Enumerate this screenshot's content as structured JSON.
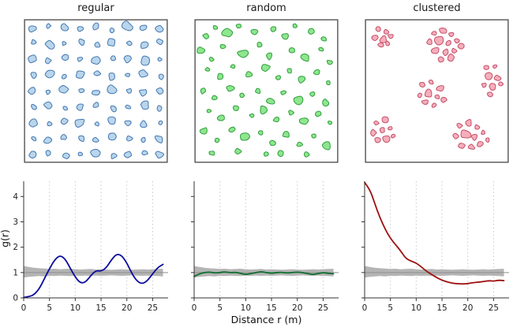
{
  "chart_data": {
    "type": "line",
    "layout": "2 rows x 3 columns; top row: point-pattern maps; bottom row: pair-correlation functions g(r) with grey simulation envelope; dotted vertical gridlines at x=5..25; legend: none",
    "xlabel": "Distance r (m)",
    "ylabel": "g(r)",
    "xlim": [
      0,
      28
    ],
    "ylim": [
      0,
      4.6
    ],
    "xticks": [
      0,
      5,
      10,
      15,
      20,
      25
    ],
    "yticks": [
      0,
      1,
      2,
      3,
      4
    ],
    "grid_x": [
      5,
      10,
      15,
      20,
      25
    ],
    "x": [
      0,
      1,
      2,
      3,
      4,
      5,
      6,
      7,
      8,
      9,
      10,
      11,
      12,
      13,
      14,
      15,
      16,
      17,
      18,
      19,
      20,
      21,
      22,
      23,
      24,
      25,
      26,
      27
    ],
    "envelope": {
      "color": "#b4b4b4",
      "center_line_y": 1,
      "center_line_color": "#8f8f8f",
      "lo": [
        0.8,
        0.83,
        0.85,
        0.86,
        0.85,
        0.87,
        0.86,
        0.88,
        0.87,
        0.86,
        0.88,
        0.87,
        0.88,
        0.87,
        0.88,
        0.87,
        0.88,
        0.89,
        0.88,
        0.87,
        0.88,
        0.89,
        0.88,
        0.87,
        0.88,
        0.87,
        0.86,
        0.85
      ],
      "hi": [
        1.26,
        1.22,
        1.19,
        1.17,
        1.16,
        1.14,
        1.15,
        1.13,
        1.14,
        1.15,
        1.13,
        1.12,
        1.13,
        1.14,
        1.12,
        1.13,
        1.12,
        1.11,
        1.12,
        1.13,
        1.12,
        1.11,
        1.12,
        1.13,
        1.12,
        1.13,
        1.14,
        1.15
      ]
    },
    "panels": [
      {
        "title": "regular",
        "map_fill": "#b9d5ec",
        "map_stroke": "#4478b0",
        "line_color": "#0b0b9e",
        "g": [
          0.02,
          0.05,
          0.12,
          0.35,
          0.75,
          1.15,
          1.5,
          1.68,
          1.55,
          1.18,
          0.82,
          0.58,
          0.62,
          0.88,
          1.08,
          1.05,
          1.18,
          1.5,
          1.73,
          1.68,
          1.38,
          0.95,
          0.65,
          0.55,
          0.68,
          0.95,
          1.2,
          1.32
        ],
        "map_points": [
          [
            6,
            7,
            3
          ],
          [
            17,
            5,
            2.2
          ],
          [
            28,
            6,
            4
          ],
          [
            39,
            7,
            2.6
          ],
          [
            50,
            5,
            3.4
          ],
          [
            61,
            8,
            2
          ],
          [
            72,
            5,
            4.2
          ],
          [
            83,
            6,
            2.8
          ],
          [
            94,
            7,
            3.6
          ],
          [
            7,
            16,
            2.4
          ],
          [
            18,
            18,
            3.8
          ],
          [
            28,
            17,
            2
          ],
          [
            40,
            16,
            3.2
          ],
          [
            51,
            18,
            2.6
          ],
          [
            61,
            16,
            4
          ],
          [
            73,
            17,
            2.2
          ],
          [
            83,
            18,
            3.4
          ],
          [
            94,
            16,
            2.8
          ],
          [
            6,
            28,
            4
          ],
          [
            17,
            29,
            2.6
          ],
          [
            29,
            27,
            3.2
          ],
          [
            39,
            28,
            2
          ],
          [
            50,
            29,
            3.8
          ],
          [
            62,
            27,
            2.4
          ],
          [
            72,
            28,
            3
          ],
          [
            84,
            29,
            4.2
          ],
          [
            94,
            28,
            2.2
          ],
          [
            7,
            39,
            2.8
          ],
          [
            18,
            38,
            3.4
          ],
          [
            28,
            40,
            2.2
          ],
          [
            39,
            39,
            4
          ],
          [
            51,
            38,
            2.6
          ],
          [
            61,
            40,
            3.2
          ],
          [
            72,
            39,
            2
          ],
          [
            83,
            38,
            3.8
          ],
          [
            95,
            40,
            2.4
          ],
          [
            6,
            50,
            3.2
          ],
          [
            17,
            51,
            2
          ],
          [
            28,
            49,
            3.8
          ],
          [
            40,
            50,
            2.4
          ],
          [
            50,
            51,
            3
          ],
          [
            61,
            49,
            4.2
          ],
          [
            73,
            50,
            2.2
          ],
          [
            83,
            51,
            3.4
          ],
          [
            94,
            50,
            2.8
          ],
          [
            7,
            61,
            2.6
          ],
          [
            17,
            60,
            4
          ],
          [
            29,
            62,
            2.2
          ],
          [
            39,
            61,
            3.4
          ],
          [
            50,
            60,
            2.8
          ],
          [
            62,
            62,
            3
          ],
          [
            72,
            61,
            2.4
          ],
          [
            84,
            60,
            4
          ],
          [
            94,
            62,
            2.6
          ],
          [
            6,
            72,
            3.6
          ],
          [
            18,
            73,
            2.4
          ],
          [
            28,
            71,
            3
          ],
          [
            39,
            72,
            4.2
          ],
          [
            51,
            73,
            2
          ],
          [
            61,
            71,
            3.6
          ],
          [
            72,
            72,
            2.6
          ],
          [
            83,
            73,
            3.2
          ],
          [
            95,
            72,
            2
          ],
          [
            7,
            83,
            2.2
          ],
          [
            17,
            84,
            3.6
          ],
          [
            28,
            82,
            2.8
          ],
          [
            40,
            83,
            3
          ],
          [
            50,
            84,
            2.4
          ],
          [
            61,
            82,
            4
          ],
          [
            73,
            83,
            2.8
          ],
          [
            83,
            84,
            2.2
          ],
          [
            94,
            83,
            3.8
          ],
          [
            6,
            94,
            3
          ],
          [
            17,
            93,
            2.6
          ],
          [
            29,
            95,
            3.4
          ],
          [
            39,
            94,
            2
          ],
          [
            50,
            93,
            4
          ],
          [
            62,
            95,
            2.6
          ],
          [
            72,
            94,
            3
          ],
          [
            84,
            93,
            2.4
          ],
          [
            94,
            94,
            3.4
          ]
        ]
      },
      {
        "title": "random",
        "map_fill": "#8ee68e",
        "map_stroke": "#2f9e3c",
        "line_color": "#0e6e2e",
        "g": [
          0.85,
          0.95,
          1.0,
          1.02,
          0.98,
          1.0,
          1.03,
          0.99,
          1.01,
          0.97,
          0.92,
          0.96,
          1.0,
          1.04,
          1.0,
          0.97,
          1.0,
          1.01,
          0.98,
          1.0,
          1.02,
          1.0,
          0.96,
          0.92,
          0.96,
          1.0,
          0.97,
          0.95
        ],
        "map_points": [
          [
            8,
            12,
            2.5
          ],
          [
            15,
            6,
            2
          ],
          [
            23,
            10,
            4
          ],
          [
            31,
            5,
            2.2
          ],
          [
            42,
            9,
            3
          ],
          [
            55,
            7,
            2.4
          ],
          [
            63,
            12,
            3.6
          ],
          [
            70,
            5,
            2
          ],
          [
            81,
            9,
            2.8
          ],
          [
            90,
            14,
            2.2
          ],
          [
            5,
            22,
            3.2
          ],
          [
            12,
            28,
            2
          ],
          [
            20,
            19,
            2.6
          ],
          [
            34,
            24,
            4.2
          ],
          [
            45,
            18,
            2.2
          ],
          [
            52,
            26,
            3
          ],
          [
            68,
            22,
            2.4
          ],
          [
            77,
            27,
            3.8
          ],
          [
            88,
            21,
            2
          ],
          [
            94,
            30,
            2.6
          ],
          [
            9,
            35,
            2.2
          ],
          [
            18,
            40,
            3.4
          ],
          [
            27,
            33,
            2
          ],
          [
            38,
            38,
            2.8
          ],
          [
            49,
            34,
            4
          ],
          [
            58,
            41,
            2.4
          ],
          [
            66,
            36,
            2
          ],
          [
            74,
            42,
            3.2
          ],
          [
            85,
            37,
            2.6
          ],
          [
            93,
            44,
            2
          ],
          [
            6,
            50,
            2.8
          ],
          [
            14,
            55,
            2.2
          ],
          [
            25,
            48,
            3.6
          ],
          [
            33,
            53,
            2
          ],
          [
            44,
            50,
            2.6
          ],
          [
            53,
            57,
            3.4
          ],
          [
            62,
            51,
            2.2
          ],
          [
            72,
            56,
            4
          ],
          [
            82,
            52,
            2.4
          ],
          [
            91,
            58,
            3
          ],
          [
            10,
            64,
            2
          ],
          [
            19,
            69,
            3
          ],
          [
            29,
            62,
            2.4
          ],
          [
            40,
            67,
            2
          ],
          [
            48,
            63,
            3.8
          ],
          [
            57,
            70,
            2.6
          ],
          [
            67,
            65,
            2.2
          ],
          [
            76,
            71,
            3.4
          ],
          [
            86,
            66,
            2.8
          ],
          [
            94,
            72,
            2
          ],
          [
            7,
            78,
            3.4
          ],
          [
            16,
            84,
            2.2
          ],
          [
            26,
            77,
            2.8
          ],
          [
            35,
            82,
            4
          ],
          [
            46,
            79,
            2
          ],
          [
            54,
            86,
            2.6
          ],
          [
            64,
            80,
            3.2
          ],
          [
            73,
            87,
            2.4
          ],
          [
            83,
            81,
            2
          ],
          [
            92,
            88,
            3.6
          ],
          [
            12,
            93,
            2.4
          ],
          [
            30,
            92,
            3
          ],
          [
            50,
            94,
            2.2
          ],
          [
            60,
            93,
            2.8
          ],
          [
            78,
            94,
            2.6
          ]
        ]
      },
      {
        "title": "clustered",
        "map_fill": "#f6aebb",
        "map_stroke": "#c4506a",
        "line_color": "#9e1010",
        "g": [
          4.55,
          4.3,
          3.7,
          3.15,
          2.7,
          2.35,
          2.1,
          1.85,
          1.55,
          1.45,
          1.38,
          1.22,
          1.05,
          0.92,
          0.8,
          0.7,
          0.63,
          0.58,
          0.56,
          0.55,
          0.56,
          0.6,
          0.62,
          0.64,
          0.68,
          0.66,
          0.7,
          0.68
        ],
        "map_points": [
          [
            9,
            7,
            2.4
          ],
          [
            15,
            9,
            2
          ],
          [
            7,
            13,
            2.8
          ],
          [
            13,
            14,
            3.2
          ],
          [
            18,
            12,
            2.2
          ],
          [
            11,
            18,
            2.6
          ],
          [
            16,
            17,
            2
          ],
          [
            48,
            10,
            2.2
          ],
          [
            54,
            8,
            3
          ],
          [
            60,
            11,
            2.4
          ],
          [
            45,
            16,
            2.8
          ],
          [
            52,
            15,
            4
          ],
          [
            58,
            17,
            2.6
          ],
          [
            64,
            15,
            2.2
          ],
          [
            49,
            22,
            3.4
          ],
          [
            56,
            23,
            2.8
          ],
          [
            62,
            22,
            2
          ],
          [
            67,
            19,
            3
          ],
          [
            53,
            28,
            2.4
          ],
          [
            60,
            27,
            3.2
          ],
          [
            84,
            34,
            2.4
          ],
          [
            90,
            33,
            2
          ],
          [
            86,
            40,
            3.6
          ],
          [
            92,
            41,
            2.6
          ],
          [
            83,
            46,
            2.2
          ],
          [
            89,
            47,
            3
          ],
          [
            94,
            45,
            2
          ],
          [
            87,
            52,
            2.6
          ],
          [
            40,
            46,
            2.6
          ],
          [
            46,
            44,
            2.2
          ],
          [
            52,
            48,
            3
          ],
          [
            38,
            53,
            2
          ],
          [
            44,
            52,
            3.8
          ],
          [
            50,
            54,
            2.4
          ],
          [
            42,
            58,
            2.8
          ],
          [
            48,
            60,
            2.2
          ],
          [
            55,
            56,
            2.6
          ],
          [
            8,
            72,
            2.2
          ],
          [
            14,
            70,
            2.8
          ],
          [
            6,
            79,
            3
          ],
          [
            12,
            77,
            2.4
          ],
          [
            18,
            76,
            2
          ],
          [
            9,
            84,
            2.6
          ],
          [
            15,
            83,
            3.4
          ],
          [
            20,
            81,
            2.2
          ],
          [
            66,
            74,
            2.4
          ],
          [
            72,
            72,
            3
          ],
          [
            78,
            75,
            2.2
          ],
          [
            63,
            81,
            2.8
          ],
          [
            70,
            80,
            4
          ],
          [
            76,
            82,
            2.6
          ],
          [
            82,
            79,
            2.2
          ],
          [
            67,
            88,
            3.2
          ],
          [
            74,
            89,
            2.4
          ],
          [
            80,
            87,
            2.8
          ],
          [
            85,
            84,
            2
          ]
        ]
      }
    ]
  }
}
